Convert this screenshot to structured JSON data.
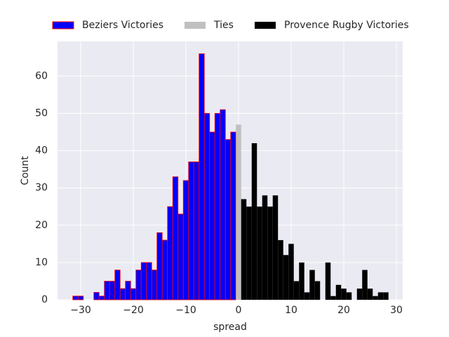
{
  "chart_data": {
    "type": "histogram",
    "xlabel": "spread",
    "ylabel": "Count",
    "xlim": [
      -34.4,
      31.2
    ],
    "ylim": [
      0,
      69.3
    ],
    "xticks": [
      {
        "value": -30,
        "label": "−30"
      },
      {
        "value": -20,
        "label": "−20"
      },
      {
        "value": -10,
        "label": "−10"
      },
      0,
      10,
      20,
      30
    ],
    "yticks": [
      0,
      10,
      20,
      30,
      40,
      50,
      60
    ],
    "grid": true,
    "legend": "top",
    "series": [
      {
        "name": "Beziers Victories",
        "color": "#0000ff",
        "edgecolor": "#ff0000",
        "bins": [
          -31.5,
          -30.5,
          -29.5,
          -28.5,
          -27.5,
          -26.5,
          -25.5,
          -24.5,
          -23.5,
          -22.5,
          -21.5,
          -20.5,
          -19.5,
          -18.5,
          -17.5,
          -16.5,
          -15.5,
          -14.5,
          -13.5,
          -12.5,
          -11.5,
          -10.5,
          -9.5,
          -8.5,
          -7.5,
          -6.5,
          -5.5,
          -4.5,
          -3.5,
          -2.5,
          -1.5,
          -0.5
        ],
        "values": [
          1,
          1,
          0,
          0,
          2,
          1,
          5,
          5,
          8,
          3,
          5,
          3,
          8,
          10,
          10,
          8,
          18,
          16,
          25,
          33,
          23,
          32,
          37,
          37,
          66,
          50,
          45,
          50,
          51,
          43,
          45
        ]
      },
      {
        "name": "Ties",
        "color": "#c0c0c0",
        "bins": [
          -0.5,
          0.5
        ],
        "values": [
          47
        ]
      },
      {
        "name": "Provence Rugby Victories",
        "color": "#000000",
        "bins": [
          0.5,
          1.5,
          2.5,
          3.5,
          4.5,
          5.5,
          6.5,
          7.5,
          8.5,
          9.5,
          10.5,
          11.5,
          12.5,
          13.5,
          14.5,
          15.5,
          16.5,
          17.5,
          18.5,
          19.5,
          20.5,
          21.5,
          22.5,
          23.5,
          24.5,
          25.5,
          26.5,
          27.5,
          28.5
        ],
        "values": [
          27,
          25,
          42,
          25,
          28,
          25,
          28,
          16,
          12,
          15,
          5,
          10,
          2,
          8,
          5,
          0,
          10,
          1,
          4,
          3,
          2,
          0,
          3,
          8,
          3,
          1,
          2,
          2
        ]
      }
    ]
  }
}
